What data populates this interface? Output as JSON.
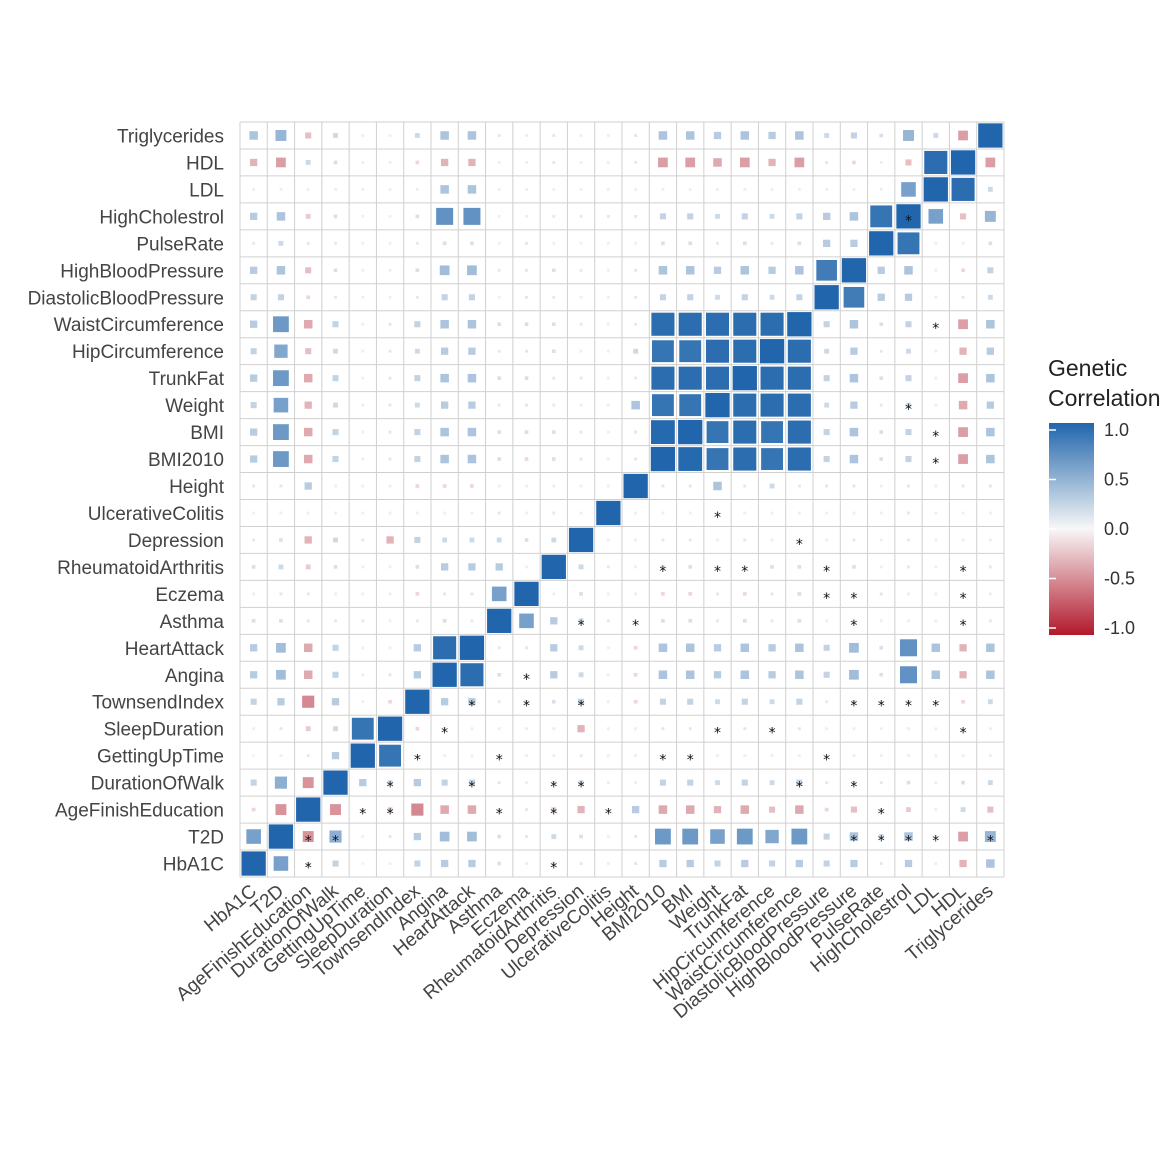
{
  "chart_data": {
    "type": "heatmap",
    "variables": [
      "HbA1C",
      "T2D",
      "AgeFinishEducation",
      "DurationOfWalk",
      "GettingUpTime",
      "SleepDuration",
      "TownsendIndex",
      "Angina",
      "HeartAttack",
      "Asthma",
      "Eczema",
      "RheumatoidArthritis",
      "Depression",
      "UlcerativeColitis",
      "Height",
      "BMI2010",
      "BMI",
      "Weight",
      "TrunkFat",
      "HipCircumference",
      "WaistCircumference",
      "DiastolicBloodPressure",
      "HighBloodPressure",
      "PulseRate",
      "HighCholestrol",
      "LDL",
      "HDL",
      "Triglycerides"
    ],
    "values": [
      [
        1,
        0.6,
        -0.15,
        0.25,
        0.02,
        0.05,
        0.25,
        0.3,
        0.3,
        0.15,
        -0.05,
        0.15,
        0.1,
        0.05,
        -0.1,
        0.3,
        0.3,
        0.25,
        0.3,
        0.25,
        0.3,
        0.25,
        0.3,
        0.1,
        0.3,
        0.05,
        -0.3,
        0.35
      ],
      [
        0.6,
        1,
        -0.45,
        0.5,
        0.05,
        -0.1,
        0.3,
        0.4,
        0.4,
        0.15,
        -0.1,
        0.2,
        0.15,
        0.05,
        -0.1,
        0.65,
        0.65,
        0.6,
        0.65,
        0.55,
        0.65,
        0.25,
        0.35,
        0.2,
        0.35,
        0.05,
        -0.4,
        0.45
      ],
      [
        -0.15,
        -0.45,
        1,
        -0.45,
        0.1,
        -0.2,
        -0.5,
        -0.35,
        -0.35,
        -0.1,
        0.1,
        -0.2,
        -0.3,
        0.05,
        0.3,
        -0.35,
        -0.35,
        -0.3,
        -0.35,
        -0.25,
        -0.35,
        -0.15,
        -0.25,
        -0.1,
        -0.2,
        -0.05,
        0.2,
        -0.25
      ],
      [
        0.25,
        0.5,
        -0.45,
        1,
        0.3,
        0.2,
        0.3,
        0.25,
        0.25,
        0.1,
        -0.05,
        0.15,
        0.2,
        0.05,
        -0.05,
        0.25,
        0.25,
        0.2,
        0.25,
        0.2,
        0.25,
        0.1,
        0.15,
        0.1,
        0.15,
        0.05,
        -0.15,
        0.2
      ],
      [
        0.02,
        0.05,
        0.1,
        0.3,
        1,
        0.9,
        0.05,
        0.05,
        0.05,
        0.1,
        0.05,
        0.05,
        0.1,
        0.05,
        0.05,
        0.05,
        0.05,
        0.05,
        0.05,
        0.05,
        0.05,
        0.05,
        0.05,
        0.05,
        0.05,
        0.05,
        0.05,
        0.05
      ],
      [
        0.05,
        -0.1,
        -0.2,
        0.2,
        0.9,
        1,
        -0.15,
        -0.1,
        -0.05,
        -0.05,
        0.05,
        -0.05,
        -0.3,
        0.05,
        0.05,
        -0.1,
        -0.1,
        -0.1,
        -0.1,
        -0.1,
        -0.1,
        0.05,
        0.05,
        0.05,
        0.05,
        0.05,
        0.05,
        0.05
      ],
      [
        0.25,
        0.3,
        -0.5,
        0.3,
        0.05,
        -0.15,
        1,
        0.3,
        0.3,
        0.1,
        -0.15,
        0.15,
        0.25,
        0.05,
        -0.15,
        0.25,
        0.25,
        0.2,
        0.25,
        0.2,
        0.25,
        0.1,
        0.15,
        0.1,
        0.15,
        0.05,
        -0.15,
        0.2
      ],
      [
        0.3,
        0.4,
        -0.35,
        0.25,
        0.05,
        -0.1,
        0.3,
        1,
        0.95,
        0.15,
        -0.1,
        0.3,
        0.2,
        0.05,
        -0.15,
        0.35,
        0.35,
        0.3,
        0.35,
        0.3,
        0.35,
        0.25,
        0.4,
        0.15,
        0.7,
        0.35,
        -0.3,
        0.35
      ],
      [
        0.3,
        0.4,
        -0.35,
        0.25,
        0.05,
        -0.05,
        0.3,
        0.95,
        1,
        0.1,
        -0.1,
        0.3,
        0.2,
        0.05,
        -0.15,
        0.35,
        0.35,
        0.3,
        0.35,
        0.3,
        0.35,
        0.25,
        0.4,
        0.15,
        0.7,
        0.35,
        -0.3,
        0.35
      ],
      [
        0.15,
        0.15,
        -0.1,
        0.1,
        0.1,
        -0.05,
        0.1,
        0.15,
        0.1,
        1,
        0.6,
        0.3,
        0.2,
        0.1,
        0.05,
        0.15,
        0.15,
        0.1,
        0.15,
        0.1,
        0.15,
        0.05,
        0.1,
        0.05,
        0.05,
        0.05,
        -0.05,
        0.1
      ],
      [
        -0.05,
        -0.1,
        0.1,
        -0.05,
        0.05,
        0.05,
        -0.15,
        -0.1,
        -0.1,
        0.6,
        1,
        0.05,
        0.15,
        0.05,
        0.05,
        -0.15,
        -0.15,
        -0.1,
        -0.15,
        -0.1,
        -0.15,
        -0.1,
        -0.1,
        -0.1,
        -0.05,
        0.05,
        0.05,
        -0.05
      ],
      [
        0.15,
        0.2,
        -0.2,
        0.15,
        0.05,
        -0.05,
        0.15,
        0.3,
        0.3,
        0.3,
        0.05,
        1,
        0.2,
        0.1,
        -0.05,
        0.15,
        0.15,
        0.1,
        0.1,
        0.15,
        0.15,
        0.1,
        0.15,
        0.05,
        0.1,
        0.05,
        -0.1,
        0.1
      ],
      [
        0.1,
        0.15,
        -0.3,
        0.2,
        0.1,
        -0.3,
        0.25,
        0.2,
        0.2,
        0.2,
        0.15,
        0.2,
        1,
        0.05,
        0.05,
        0.1,
        0.1,
        0.05,
        0.1,
        0.05,
        0.1,
        0.05,
        0.1,
        0.05,
        0.1,
        0.05,
        -0.05,
        0.05
      ],
      [
        0.05,
        0.05,
        0.05,
        0.05,
        0.05,
        0.05,
        0.05,
        0.05,
        0.05,
        0.1,
        0.05,
        0.1,
        0.05,
        1,
        0.05,
        0.05,
        0.05,
        0.05,
        0.05,
        0.05,
        0.05,
        0.05,
        0.05,
        0.05,
        0.1,
        0.05,
        0.05,
        0.05
      ],
      [
        -0.1,
        -0.1,
        0.3,
        -0.05,
        0.05,
        0.05,
        -0.15,
        -0.15,
        -0.15,
        0.05,
        0.05,
        -0.05,
        0.05,
        0.05,
        1,
        -0.1,
        -0.1,
        0.35,
        0.1,
        0.2,
        0.1,
        -0.1,
        -0.1,
        -0.05,
        -0.1,
        -0.05,
        0.1,
        -0.1
      ],
      [
        0.3,
        0.65,
        -0.35,
        0.25,
        0.05,
        -0.1,
        0.25,
        0.35,
        0.35,
        0.15,
        -0.15,
        0.15,
        0.1,
        0.05,
        -0.1,
        1,
        0.98,
        0.9,
        0.95,
        0.9,
        0.95,
        0.25,
        0.35,
        0.15,
        0.25,
        0.05,
        -0.4,
        0.35
      ],
      [
        0.3,
        0.65,
        -0.35,
        0.25,
        0.05,
        -0.1,
        0.25,
        0.35,
        0.35,
        0.15,
        -0.15,
        0.15,
        0.1,
        0.05,
        -0.1,
        0.98,
        1,
        0.9,
        0.95,
        0.9,
        0.95,
        0.25,
        0.35,
        0.15,
        0.25,
        0.05,
        -0.4,
        0.35
      ],
      [
        0.25,
        0.6,
        -0.3,
        0.2,
        0.05,
        -0.1,
        0.2,
        0.3,
        0.3,
        0.1,
        -0.1,
        0.1,
        0.05,
        0.05,
        0.35,
        0.9,
        0.9,
        1,
        0.95,
        0.95,
        0.95,
        0.2,
        0.3,
        0.1,
        0.2,
        0.05,
        -0.35,
        0.3
      ],
      [
        0.3,
        0.65,
        -0.35,
        0.25,
        0.05,
        -0.1,
        0.25,
        0.35,
        0.35,
        0.15,
        -0.15,
        0.1,
        0.1,
        0.05,
        0.1,
        0.95,
        0.95,
        0.95,
        1,
        0.95,
        0.95,
        0.25,
        0.35,
        0.15,
        0.25,
        0.05,
        -0.4,
        0.35
      ],
      [
        0.25,
        0.55,
        -0.25,
        0.2,
        0.05,
        -0.1,
        0.2,
        0.3,
        0.3,
        0.1,
        -0.1,
        0.15,
        0.05,
        0.05,
        0.2,
        0.9,
        0.9,
        0.95,
        0.95,
        1,
        0.95,
        0.2,
        0.3,
        0.1,
        0.2,
        0.05,
        -0.3,
        0.3
      ],
      [
        0.3,
        0.65,
        -0.35,
        0.25,
        0.05,
        -0.1,
        0.25,
        0.35,
        0.35,
        0.15,
        -0.15,
        0.15,
        0.1,
        0.05,
        0.1,
        0.95,
        0.95,
        0.95,
        0.95,
        0.95,
        1,
        0.25,
        0.35,
        0.15,
        0.25,
        0.05,
        -0.4,
        0.35
      ],
      [
        0.25,
        0.25,
        -0.15,
        0.1,
        0.05,
        0.05,
        0.1,
        0.25,
        0.25,
        0.05,
        -0.1,
        0.1,
        0.05,
        0.05,
        -0.1,
        0.25,
        0.25,
        0.2,
        0.25,
        0.2,
        0.25,
        1,
        0.85,
        0.3,
        0.3,
        0.05,
        -0.1,
        0.2
      ],
      [
        0.3,
        0.35,
        -0.25,
        0.15,
        0.05,
        0.05,
        0.15,
        0.4,
        0.4,
        0.1,
        -0.1,
        0.15,
        0.1,
        0.05,
        -0.1,
        0.35,
        0.35,
        0.3,
        0.35,
        0.3,
        0.35,
        0.85,
        1,
        0.3,
        0.35,
        0.05,
        -0.15,
        0.25
      ],
      [
        0.1,
        0.2,
        -0.1,
        0.1,
        0.05,
        0.05,
        0.1,
        0.15,
        0.15,
        0.05,
        -0.1,
        0.05,
        0.05,
        0.05,
        -0.05,
        0.15,
        0.15,
        0.1,
        0.15,
        0.1,
        0.15,
        0.3,
        0.3,
        1,
        0.9,
        0.05,
        -0.05,
        0.15
      ],
      [
        0.3,
        0.35,
        -0.2,
        0.15,
        0.05,
        0.05,
        0.15,
        0.7,
        0.7,
        0.05,
        -0.05,
        0.1,
        0.1,
        0.1,
        -0.1,
        0.25,
        0.25,
        0.2,
        0.25,
        0.2,
        0.25,
        0.3,
        0.35,
        0.9,
        1,
        0.6,
        -0.25,
        0.45
      ],
      [
        0.05,
        0.05,
        -0.05,
        0.05,
        0.05,
        0.05,
        0.05,
        0.35,
        0.35,
        0.05,
        0.05,
        0.05,
        0.05,
        0.05,
        -0.05,
        0.05,
        0.05,
        0.05,
        0.05,
        0.05,
        0.05,
        0.05,
        0.05,
        0.05,
        0.6,
        1,
        0.95,
        0.2
      ],
      [
        -0.3,
        -0.4,
        0.2,
        -0.15,
        0.05,
        0.05,
        -0.15,
        -0.3,
        -0.3,
        -0.05,
        0.05,
        -0.1,
        -0.05,
        0.05,
        0.1,
        -0.4,
        -0.4,
        -0.35,
        -0.4,
        -0.3,
        -0.4,
        -0.1,
        -0.15,
        -0.05,
        -0.25,
        0.95,
        1,
        -0.4
      ],
      [
        0.35,
        0.45,
        -0.25,
        0.2,
        0.05,
        0.05,
        0.2,
        0.35,
        0.35,
        0.1,
        -0.05,
        0.1,
        0.05,
        0.05,
        -0.1,
        0.35,
        0.35,
        0.3,
        0.35,
        0.3,
        0.35,
        0.2,
        0.25,
        0.15,
        0.45,
        0.2,
        -0.4,
        1
      ]
    ],
    "stars": [
      [
        0,
        2
      ],
      [
        0,
        11
      ],
      [
        1,
        2
      ],
      [
        1,
        3
      ],
      [
        1,
        22
      ],
      [
        1,
        23
      ],
      [
        1,
        24
      ],
      [
        1,
        25
      ],
      [
        1,
        27
      ],
      [
        2,
        4
      ],
      [
        2,
        5
      ],
      [
        2,
        9
      ],
      [
        2,
        11
      ],
      [
        2,
        13
      ],
      [
        2,
        23
      ],
      [
        3,
        5
      ],
      [
        3,
        8
      ],
      [
        3,
        11
      ],
      [
        3,
        12
      ],
      [
        3,
        20
      ],
      [
        3,
        22
      ],
      [
        4,
        6
      ],
      [
        4,
        9
      ],
      [
        4,
        15
      ],
      [
        4,
        16
      ],
      [
        4,
        21
      ],
      [
        5,
        7
      ],
      [
        5,
        17
      ],
      [
        5,
        19
      ],
      [
        5,
        26
      ],
      [
        6,
        8
      ],
      [
        6,
        10
      ],
      [
        6,
        12
      ],
      [
        6,
        22
      ],
      [
        6,
        23
      ],
      [
        6,
        24
      ],
      [
        6,
        25
      ],
      [
        7,
        10
      ],
      [
        9,
        12
      ],
      [
        9,
        14
      ],
      [
        9,
        22
      ],
      [
        9,
        26
      ],
      [
        10,
        21
      ],
      [
        10,
        22
      ],
      [
        10,
        26
      ],
      [
        11,
        15
      ],
      [
        11,
        17
      ],
      [
        11,
        18
      ],
      [
        11,
        21
      ],
      [
        11,
        26
      ],
      [
        12,
        20
      ],
      [
        13,
        17
      ],
      [
        15,
        25
      ],
      [
        16,
        25
      ],
      [
        17,
        24
      ],
      [
        20,
        25
      ],
      [
        24,
        24
      ]
    ],
    "legend": {
      "title": [
        "Genetic",
        "Correlation"
      ],
      "ticks": [
        "1.0",
        "0.5",
        "0.0",
        "-0.5",
        "-1.0"
      ],
      "range": [
        -1,
        1
      ]
    },
    "colors": {
      "high": "#2166ac",
      "mid": "#f7f7f7",
      "low": "#b2182b"
    }
  }
}
